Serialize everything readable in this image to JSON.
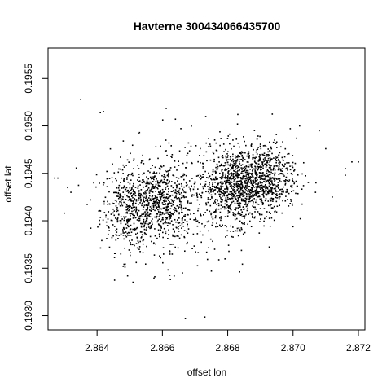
{
  "chart_data": {
    "type": "scatter",
    "title": "Havterne 300434066435700",
    "xlabel": "offset lon",
    "ylabel": "offset lat",
    "xlim": [
      2.8625,
      2.8722
    ],
    "ylim": [
      0.19285,
      0.19582
    ],
    "x_ticks": [
      "2.864",
      "2.866",
      "2.868",
      "2.870",
      "2.872"
    ],
    "y_ticks": [
      "0.1930",
      "0.1935",
      "0.1940",
      "0.1945",
      "0.1950",
      "0.1955"
    ],
    "x_tick_values": [
      2.864,
      2.866,
      2.868,
      2.87,
      2.872
    ],
    "y_tick_values": [
      0.193,
      0.1935,
      0.194,
      0.1945,
      0.195,
      0.1955
    ],
    "grid": false,
    "legend": "none",
    "point_color": "#000000",
    "clusters": [
      {
        "center": [
          2.865,
          0.19412
        ],
        "spread": [
          0.00045,
          0.00022
        ],
        "count": 420
      },
      {
        "center": [
          2.866,
          0.1942
        ],
        "spread": [
          0.00045,
          0.0002
        ],
        "count": 520
      },
      {
        "center": [
          2.8683,
          0.19437
        ],
        "spread": [
          0.0006,
          0.0002
        ],
        "count": 1000
      },
      {
        "center": [
          2.8692,
          0.19448
        ],
        "spread": [
          0.00045,
          0.00018
        ],
        "count": 420
      },
      {
        "center": [
          2.8666,
          0.1942
        ],
        "spread": [
          0.0011,
          0.0004
        ],
        "count": 260
      }
    ],
    "points": [
      [
        2.8635,
        0.19528
      ],
      [
        2.8642,
        0.19515
      ],
      [
        2.8641,
        0.19514
      ],
      [
        2.8653,
        0.19493
      ],
      [
        2.8627,
        0.19445
      ],
      [
        2.8631,
        0.19435
      ],
      [
        2.8639,
        0.1944
      ],
      [
        2.863,
        0.19408
      ],
      [
        2.8648,
        0.19352
      ],
      [
        2.8652,
        0.19356
      ],
      [
        2.8675,
        0.19347
      ],
      [
        2.8676,
        0.1937
      ],
      [
        2.8702,
        0.195
      ],
      [
        2.8708,
        0.19495
      ],
      [
        2.8716,
        0.19455
      ],
      [
        2.8718,
        0.19462
      ],
      [
        2.872,
        0.19462
      ],
      [
        2.871,
        0.19476
      ],
      [
        2.8701,
        0.19487
      ],
      [
        2.8662,
        0.19482
      ],
      [
        2.8658,
        0.19478
      ],
      [
        2.8683,
        0.19502
      ],
      [
        2.8695,
        0.19483
      ],
      [
        2.8712,
        0.19425
      ],
      [
        2.8707,
        0.1944
      ],
      [
        2.8716,
        0.19448
      ],
      [
        2.8643,
        0.19452
      ],
      [
        2.8632,
        0.1943
      ],
      [
        2.8638,
        0.19422
      ],
      [
        2.8628,
        0.19445
      ]
    ]
  }
}
